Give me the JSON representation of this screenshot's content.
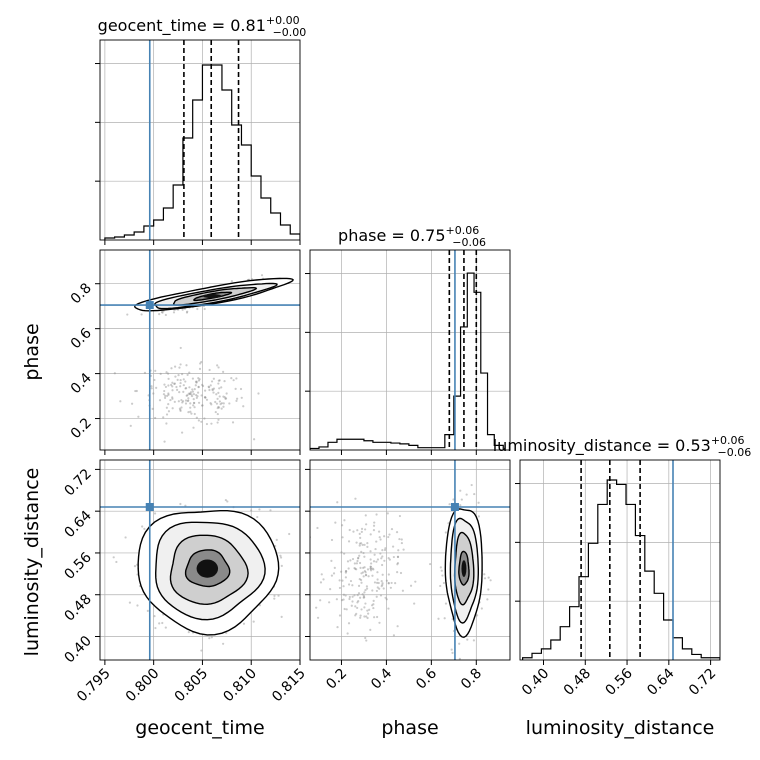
{
  "chart_data": {
    "type": "corner",
    "parameters": [
      "geocent_time",
      "phase",
      "luminosity_distance"
    ],
    "truth": {
      "geocent_time": 0.7996,
      "phase": 0.705,
      "luminosity_distance": 0.648
    },
    "colors": {
      "truth": "#4682b4",
      "hist": "#000000",
      "grid": "#b0b0b0",
      "scatter": "#8c8c8c"
    },
    "grid": true,
    "diagonal": [
      {
        "parameter": "geocent_time",
        "title_prefix": "geocent_time = ",
        "median": "0.81",
        "plus": "+0.00",
        "minus": "−0.00",
        "quantiles": [
          0.8031,
          0.8059,
          0.8087
        ],
        "bin_edges": [
          0.795,
          0.796,
          0.797,
          0.798,
          0.799,
          0.8,
          0.801,
          0.802,
          0.803,
          0.804,
          0.805,
          0.806,
          0.807,
          0.808,
          0.809,
          0.81,
          0.811,
          0.812,
          0.813,
          0.814,
          0.815
        ],
        "counts": [
          2,
          3,
          5,
          8,
          14,
          20,
          32,
          55,
          102,
          140,
          175,
          175,
          150,
          115,
          95,
          64,
          42,
          27,
          15,
          6
        ],
        "ylim": [
          0,
          200
        ]
      },
      {
        "parameter": "phase",
        "title_prefix": "phase = ",
        "median": "0.75",
        "plus": "+0.06",
        "minus": "−0.06",
        "quantiles": [
          0.68,
          0.745,
          0.8
        ],
        "bin_edges": [
          0.06,
          0.1,
          0.14,
          0.18,
          0.22,
          0.26,
          0.3,
          0.34,
          0.38,
          0.42,
          0.46,
          0.5,
          0.54,
          0.58,
          0.62,
          0.66,
          0.7,
          0.73,
          0.76,
          0.79,
          0.82,
          0.85,
          0.88,
          0.92
        ],
        "counts": [
          2,
          4,
          10,
          14,
          14,
          14,
          12,
          10,
          10,
          9,
          8,
          6,
          3,
          3,
          3,
          20,
          70,
          160,
          230,
          205,
          100,
          20,
          6
        ],
        "ylim": [
          0,
          260
        ]
      },
      {
        "parameter": "luminosity_distance",
        "title_prefix": "luminosity_distance = ",
        "median": "0.53",
        "plus": "+0.06",
        "minus": "−0.06",
        "quantiles": [
          0.472,
          0.527,
          0.585
        ],
        "bin_edges": [
          0.36,
          0.378,
          0.396,
          0.414,
          0.432,
          0.45,
          0.468,
          0.486,
          0.504,
          0.522,
          0.54,
          0.558,
          0.576,
          0.594,
          0.612,
          0.63,
          0.648,
          0.666,
          0.684,
          0.702,
          0.72,
          0.738
        ],
        "counts": [
          2,
          6,
          10,
          18,
          30,
          48,
          75,
          105,
          140,
          162,
          158,
          140,
          112,
          80,
          60,
          36,
          20,
          10,
          5,
          2,
          2
        ],
        "ylim": [
          0,
          180
        ]
      }
    ],
    "ranges": {
      "geocent_time": [
        0.7945,
        0.815
      ],
      "phase": [
        0.06,
        0.95
      ],
      "luminosity_distance": [
        0.355,
        0.738
      ]
    },
    "ticks": {
      "geocent_time": [
        "0.795",
        "0.800",
        "0.805",
        "0.810",
        "0.815"
      ],
      "phase_x": [
        "0.2",
        "0.4",
        "0.6",
        "0.8"
      ],
      "phase_y": [
        "0.2",
        "0.4",
        "0.6",
        "0.8"
      ],
      "luminosity_distance_x": [
        "0.40",
        "0.48",
        "0.56",
        "0.64",
        "0.72"
      ],
      "luminosity_distance_y": [
        "0.40",
        "0.48",
        "0.56",
        "0.64",
        "0.72"
      ]
    },
    "pairs": [
      {
        "x": "geocent_time",
        "y": "phase",
        "clusters": [
          {
            "cx": 0.806,
            "cy": 0.745,
            "sx": 0.0025,
            "sy": 0.035,
            "rho": 0.85,
            "n": 260
          },
          {
            "cx": 0.804,
            "cy": 0.3,
            "sx": 0.0028,
            "sy": 0.065,
            "rho": -0.2,
            "n": 210
          }
        ],
        "contours": [
          {
            "cx": 0.806,
            "cy": 0.745,
            "rx": 0.0019,
            "ry": 0.018,
            "rho": 0.85
          },
          {
            "cx": 0.806,
            "cy": 0.745,
            "rx": 0.0042,
            "ry": 0.038,
            "rho": 0.85
          },
          {
            "cx": 0.806,
            "cy": 0.745,
            "rx": 0.0062,
            "ry": 0.055,
            "rho": 0.85
          },
          {
            "cx": 0.806,
            "cy": 0.75,
            "rx": 0.008,
            "ry": 0.072,
            "rho": 0.85
          }
        ]
      },
      {
        "x": "geocent_time",
        "y": "luminosity_distance",
        "clusters": [
          {
            "cx": 0.8055,
            "cy": 0.53,
            "sx": 0.0032,
            "sy": 0.055,
            "rho": 0.0,
            "n": 520
          }
        ],
        "contours": [
          {
            "cx": 0.8055,
            "cy": 0.53,
            "rx": 0.0022,
            "ry": 0.035,
            "rho": 0.0
          },
          {
            "cx": 0.8055,
            "cy": 0.528,
            "rx": 0.0039,
            "ry": 0.066,
            "rho": 0.0
          },
          {
            "cx": 0.8055,
            "cy": 0.53,
            "rx": 0.0056,
            "ry": 0.093,
            "rho": 0.0
          },
          {
            "cx": 0.8055,
            "cy": 0.53,
            "rx": 0.0072,
            "ry": 0.118,
            "rho": 0.0
          }
        ]
      },
      {
        "x": "phase",
        "y": "luminosity_distance",
        "clusters": [
          {
            "cx": 0.745,
            "cy": 0.53,
            "sx": 0.04,
            "sy": 0.055,
            "rho": 0.0,
            "n": 360
          },
          {
            "cx": 0.3,
            "cy": 0.52,
            "sx": 0.08,
            "sy": 0.055,
            "rho": 0.0,
            "n": 230
          }
        ],
        "contours": [
          {
            "cx": 0.745,
            "cy": 0.53,
            "rx": 0.022,
            "ry": 0.032,
            "rho": 0.0
          },
          {
            "cx": 0.745,
            "cy": 0.53,
            "rx": 0.042,
            "ry": 0.068,
            "rho": 0.0
          },
          {
            "cx": 0.745,
            "cy": 0.53,
            "rx": 0.062,
            "ry": 0.098,
            "rho": 0.0
          },
          {
            "cx": 0.745,
            "cy": 0.53,
            "rx": 0.082,
            "ry": 0.122,
            "rho": 0.0
          }
        ]
      }
    ]
  }
}
